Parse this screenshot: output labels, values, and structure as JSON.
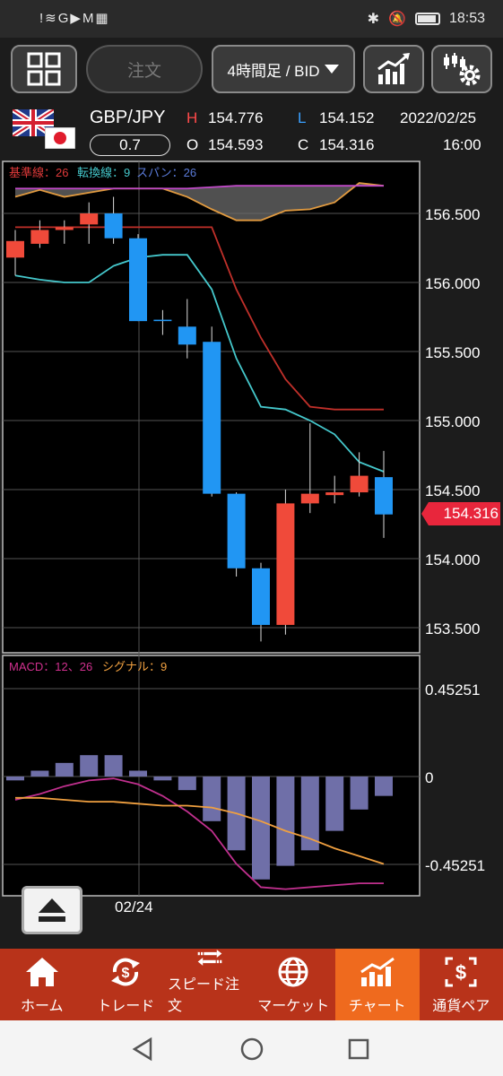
{
  "status_bar": {
    "left_icons": "!≋G▶M▦",
    "time": "18:53"
  },
  "toolbar": {
    "order_label": "注文",
    "period_label": "4時間足 / BID"
  },
  "quote": {
    "pair": "GBP/JPY",
    "spread": "0.7",
    "high_label": "H",
    "high": "154.776",
    "low_label": "L",
    "low": "154.152",
    "open_label": "O",
    "open": "154.593",
    "close_label": "C",
    "close": "154.316",
    "date": "2022/02/25",
    "time": "16:00"
  },
  "main_chart": {
    "legend": {
      "kijun": "基準線：26",
      "tenkan": "転換線：9",
      "span": "スパン：26"
    },
    "y_ticks": [
      "156.500",
      "156.000",
      "155.500",
      "155.000",
      "154.500",
      "154.000",
      "153.500"
    ],
    "current_price": "154.316"
  },
  "macd_chart": {
    "legend": {
      "macd": "MACD：12、26",
      "signal": "シグナル：9"
    },
    "y_ticks": [
      "0.45251",
      "0",
      "-0.45251"
    ]
  },
  "x_axis": {
    "date_label": "02/24"
  },
  "chart_data": {
    "type": "candlestick",
    "ylim": [
      153.35,
      156.9
    ],
    "candles": [
      {
        "o": 156.18,
        "h": 156.38,
        "l": 156.05,
        "c": 156.3
      },
      {
        "o": 156.28,
        "h": 156.45,
        "l": 156.25,
        "c": 156.38
      },
      {
        "o": 156.38,
        "h": 156.45,
        "l": 156.28,
        "c": 156.4
      },
      {
        "o": 156.42,
        "h": 156.58,
        "l": 156.28,
        "c": 156.5
      },
      {
        "o": 156.5,
        "h": 156.62,
        "l": 156.28,
        "c": 156.32
      },
      {
        "o": 156.32,
        "h": 156.35,
        "l": 155.72,
        "c": 155.72
      },
      {
        "o": 155.73,
        "h": 155.8,
        "l": 155.62,
        "c": 155.72
      },
      {
        "o": 155.68,
        "h": 155.88,
        "l": 155.45,
        "c": 155.55
      },
      {
        "o": 155.57,
        "h": 155.68,
        "l": 154.45,
        "c": 154.47
      },
      {
        "o": 154.47,
        "h": 154.48,
        "l": 153.87,
        "c": 153.93
      },
      {
        "o": 153.93,
        "h": 153.97,
        "l": 153.4,
        "c": 153.52
      },
      {
        "o": 153.52,
        "h": 154.5,
        "l": 153.45,
        "c": 154.4
      },
      {
        "o": 154.4,
        "h": 154.98,
        "l": 154.33,
        "c": 154.47
      },
      {
        "o": 154.46,
        "h": 154.6,
        "l": 154.4,
        "c": 154.48
      },
      {
        "o": 154.48,
        "h": 154.77,
        "l": 154.45,
        "c": 154.6
      },
      {
        "o": 154.59,
        "h": 154.78,
        "l": 154.15,
        "c": 154.32
      }
    ],
    "kijun": [
      156.4,
      156.4,
      156.4,
      156.4,
      156.4,
      156.4,
      156.4,
      156.4,
      156.4,
      155.95,
      155.6,
      155.3,
      155.1,
      155.08,
      155.08,
      155.08
    ],
    "tenkan": [
      156.05,
      156.02,
      156.0,
      156.0,
      156.12,
      156.18,
      156.2,
      156.2,
      155.95,
      155.45,
      155.1,
      155.08,
      155.0,
      154.9,
      154.7,
      154.63
    ],
    "span_a": [
      156.62,
      156.67,
      156.62,
      156.65,
      156.68,
      156.68,
      156.68,
      156.62,
      156.53,
      156.45,
      156.45,
      156.52,
      156.53,
      156.58,
      156.72,
      156.7
    ],
    "span_b": [
      156.68,
      156.68,
      156.68,
      156.68,
      156.68,
      156.68,
      156.68,
      156.68,
      156.69,
      156.7,
      156.7,
      156.7,
      156.7,
      156.7,
      156.7,
      156.7
    ],
    "macd_hist": [
      -0.02,
      0.03,
      0.07,
      0.11,
      0.11,
      0.03,
      -0.02,
      -0.07,
      -0.23,
      -0.38,
      -0.53,
      -0.46,
      -0.38,
      -0.28,
      -0.17,
      -0.1
    ],
    "macd_line": [
      -0.12,
      -0.09,
      -0.05,
      -0.02,
      -0.01,
      -0.04,
      -0.1,
      -0.18,
      -0.28,
      -0.45,
      -0.57,
      -0.58,
      -0.57,
      -0.56,
      -0.55,
      -0.55
    ],
    "signal_line": [
      -0.11,
      -0.11,
      -0.12,
      -0.13,
      -0.13,
      -0.14,
      -0.15,
      -0.15,
      -0.16,
      -0.19,
      -0.23,
      -0.28,
      -0.32,
      -0.37,
      -0.41,
      -0.45
    ],
    "macd_ylim": [
      -0.55,
      0.52
    ]
  },
  "nav": {
    "items": [
      {
        "label": "ホーム"
      },
      {
        "label": "トレード"
      },
      {
        "label": "スピード注文"
      },
      {
        "label": "マーケット"
      },
      {
        "label": "チャート"
      },
      {
        "label": "通貨ペア"
      }
    ]
  },
  "colors": {
    "up": "#f04a3a",
    "down": "#2196f3",
    "kijun": "#c0302a",
    "tenkan": "#45c8cc",
    "span_a": "#e09a40",
    "span_b": "#c04ac8",
    "macd": "#c0308e",
    "signal": "#f0a040",
    "hist": "#6f6fa8"
  }
}
